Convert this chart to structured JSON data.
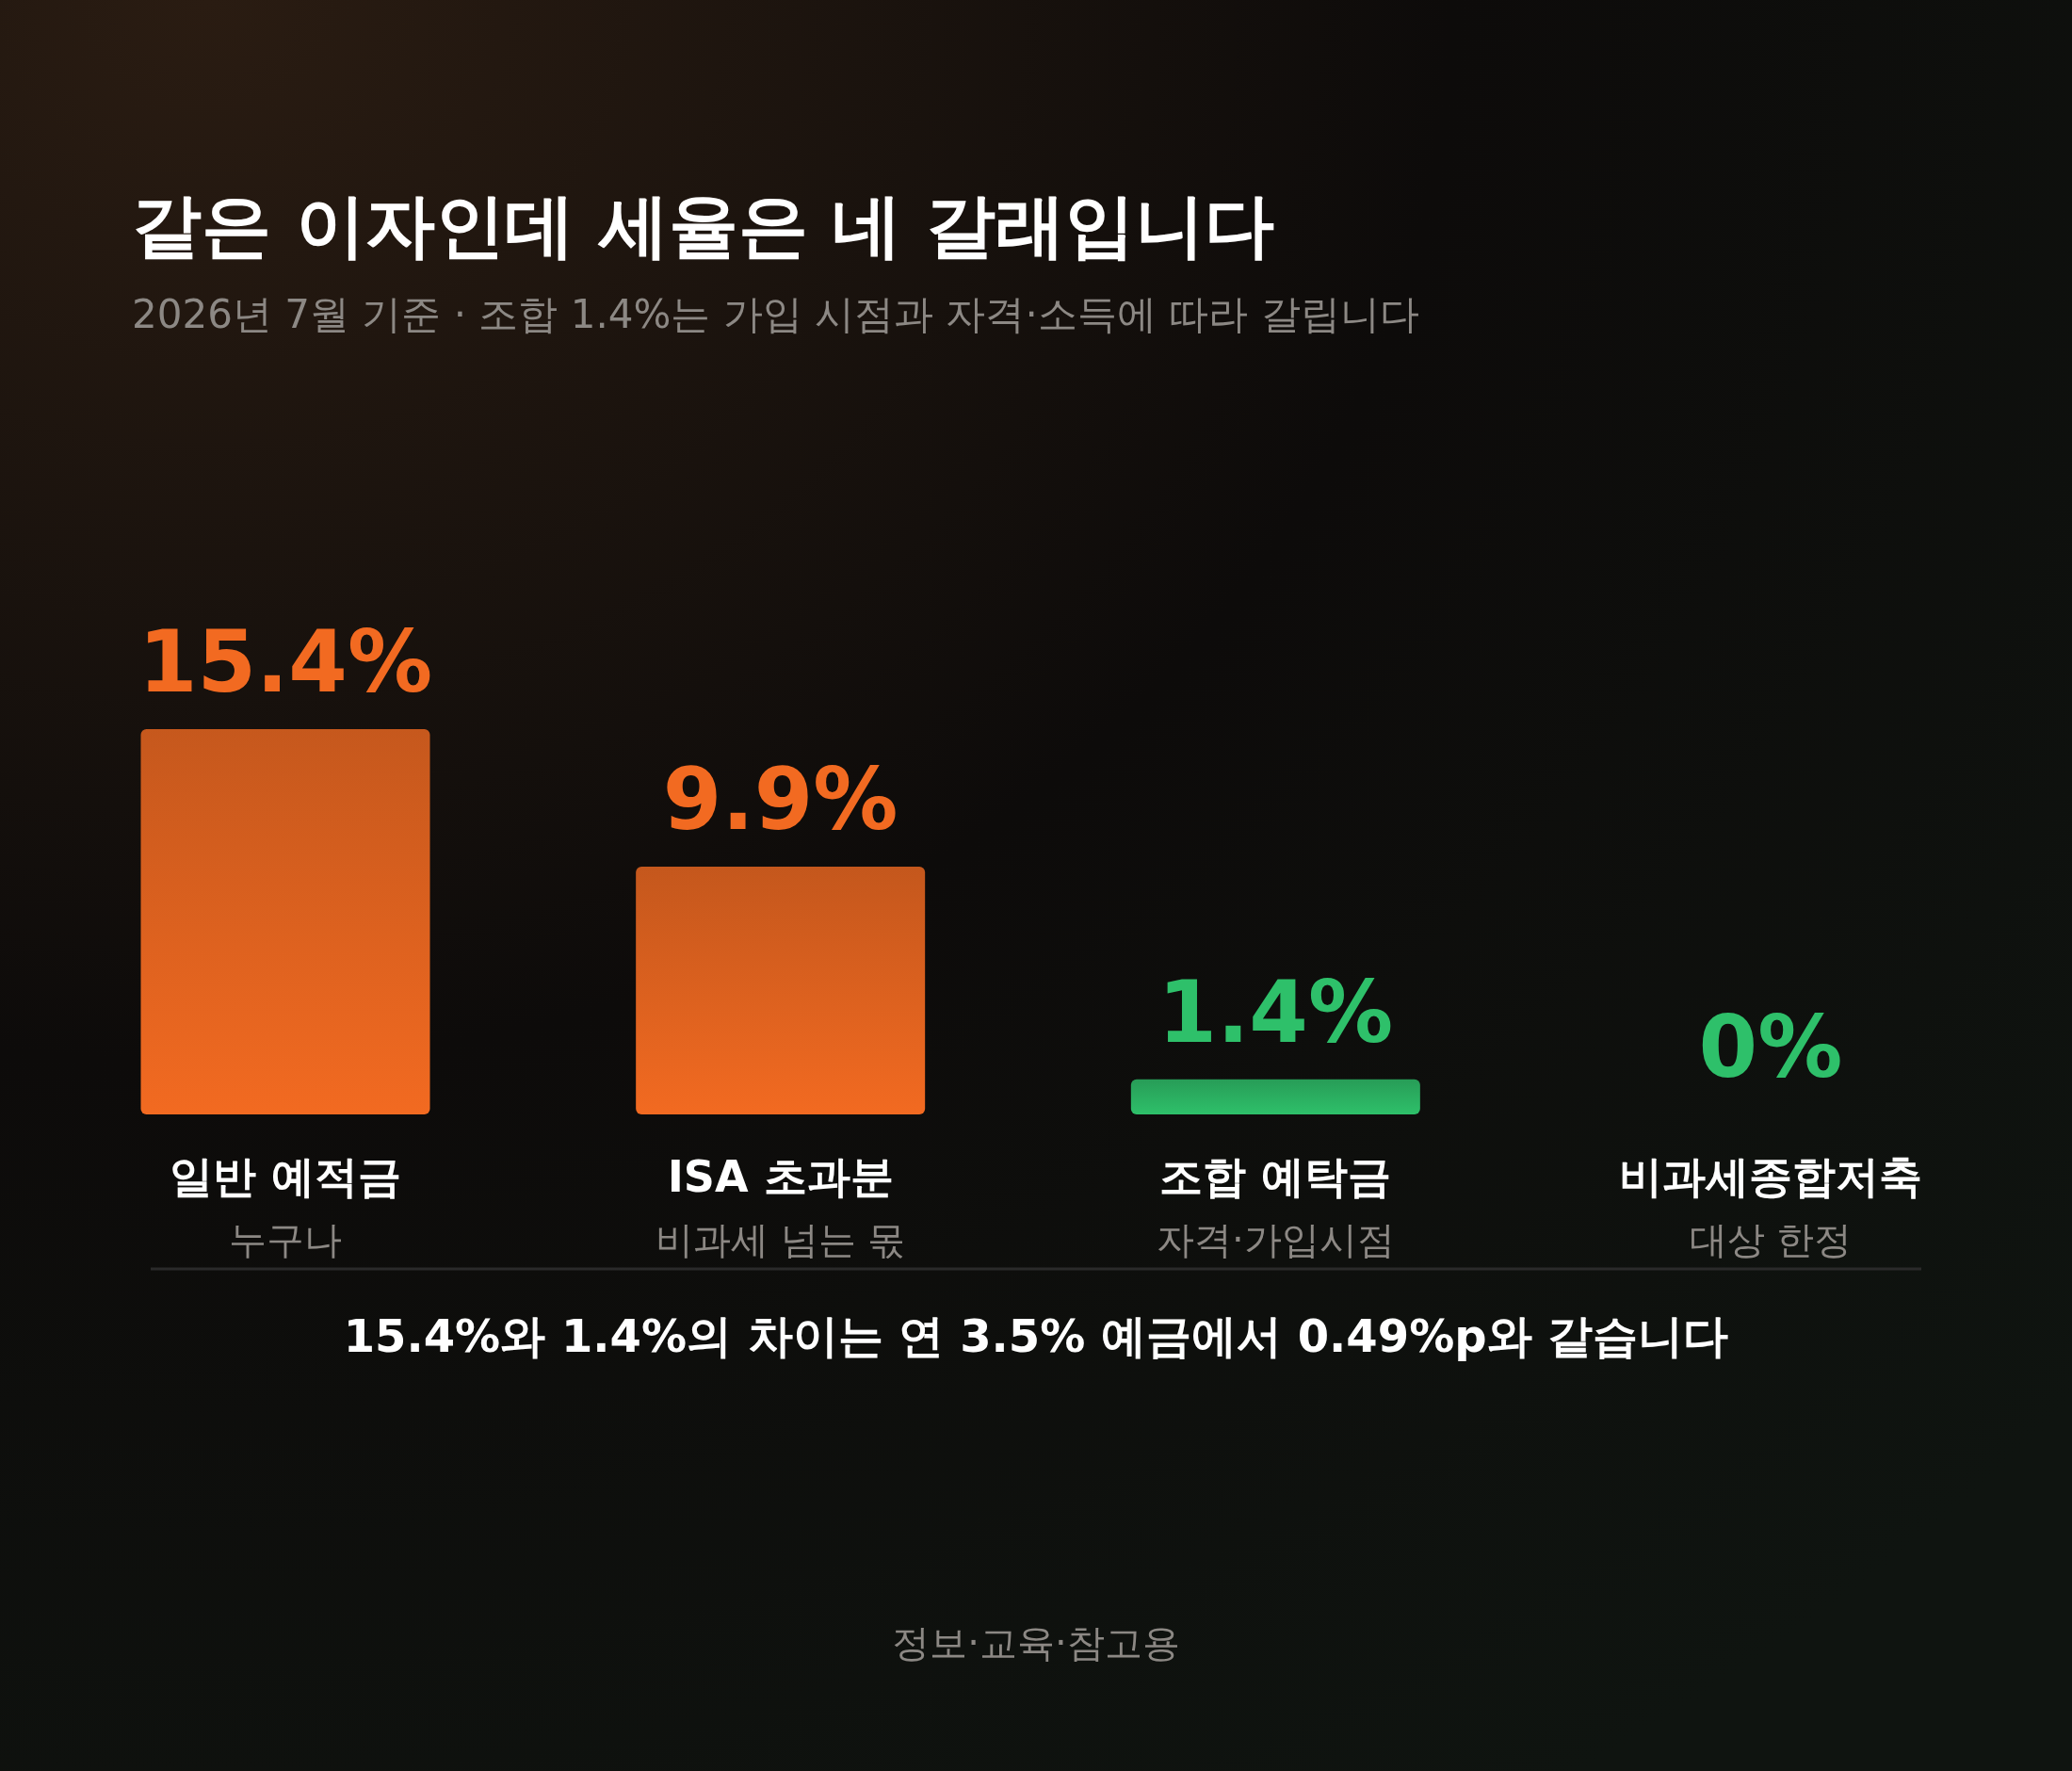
{
  "chart_data": {
    "type": "bar",
    "title": "같은 이자인데 세율은 네 갈래입니다",
    "subtitle": "2026년 7월 기준 · 조합 1.4%는 가입 시점과 자격·소득에 따라 갈립니다",
    "categories": [
      "일반 예적금\n누구나",
      "ISA 초과분\n비과세 넘는 몫",
      "조합 예탁금\n자격·가입시점",
      "비과세종합저축\n대상 한정"
    ],
    "values": [
      15.4,
      9.9,
      1.4,
      0
    ],
    "colors": [
      "#f26a21",
      "#f26a21",
      "#2ec06a",
      "#2ec06a"
    ],
    "value_labels": [
      "15.4%",
      "9.9%",
      "1.4%",
      "0%"
    ],
    "annotations": [
      "15.4%와 1.4%의 차이는 연 3.5% 예금에서 0.49%p와 같습니다",
      "정보·교육·참고용"
    ]
  }
}
